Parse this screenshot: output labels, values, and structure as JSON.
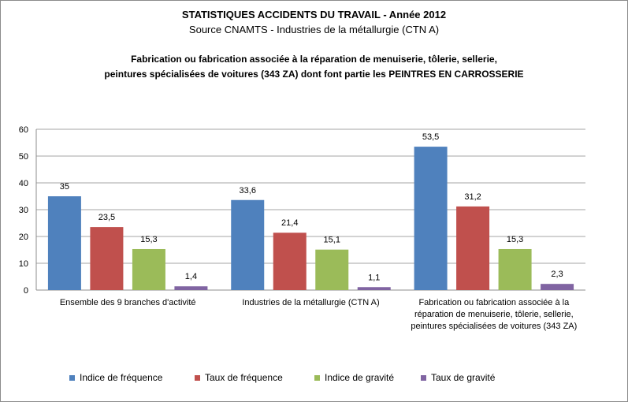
{
  "header": {
    "title": "STATISTIQUES ACCIDENTS DU TRAVAIL - Année 2012",
    "subtitle": "Source  CNAMTS - Industries de la métallurgie (CTN A)",
    "heading_line1": "Fabrication ou fabrication associée à la réparation de menuiserie, tôlerie, sellerie,",
    "heading_line2": "peintures spécialisées de voitures (343 ZA) dont font partie les PEINTRES EN CARROSSERIE"
  },
  "chart_data": {
    "type": "bar",
    "categories": [
      [
        "Ensemble des 9 branches d'activité"
      ],
      [
        "Industries de la métallurgie (CTN A)"
      ],
      [
        "Fabrication ou fabrication associée à la",
        "réparation de menuiserie, tôlerie, sellerie,",
        "peintures spécialisées de voitures (343 ZA)"
      ]
    ],
    "series": [
      {
        "name": "Indice de fréquence",
        "color": "#4f81bd",
        "values": [
          35,
          33.6,
          53.5
        ],
        "labels": [
          "35",
          "33,6",
          "53,5"
        ]
      },
      {
        "name": "Taux de fréquence",
        "color": "#c0504d",
        "values": [
          23.5,
          21.4,
          31.2
        ],
        "labels": [
          "23,5",
          "21,4",
          "31,2"
        ]
      },
      {
        "name": "Indice de gravité",
        "color": "#9bbb59",
        "values": [
          15.3,
          15.1,
          15.3
        ],
        "labels": [
          "15,3",
          "15,1",
          "15,3"
        ]
      },
      {
        "name": "Taux de gravité",
        "color": "#8064a2",
        "values": [
          1.4,
          1.1,
          2.3
        ],
        "labels": [
          "1,4",
          "1,1",
          "2,3"
        ]
      }
    ],
    "ylim": [
      0,
      60
    ],
    "yticks": [
      0,
      10,
      20,
      30,
      40,
      50,
      60
    ],
    "grid": true,
    "legend_position": "bottom"
  }
}
